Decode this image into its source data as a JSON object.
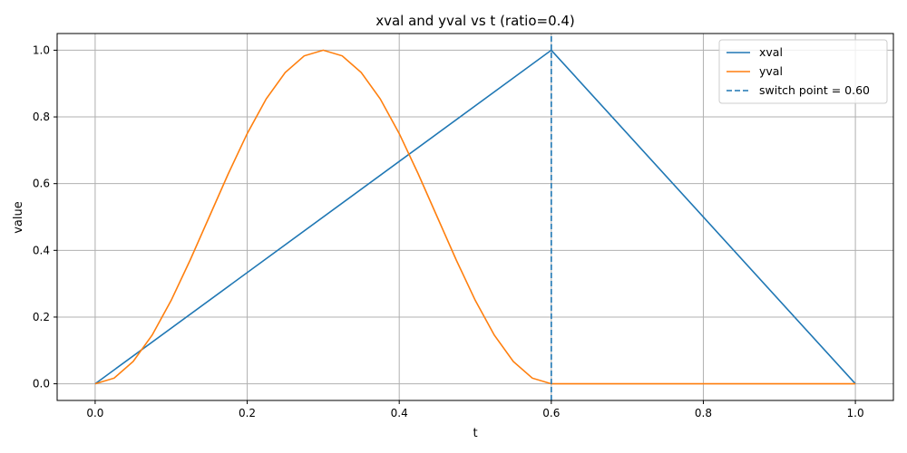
{
  "chart_data": {
    "type": "line",
    "title": "xval and yval vs t  (ratio=0.4)",
    "xlabel": "t",
    "ylabel": "value",
    "xlim": [
      -0.05,
      1.05
    ],
    "ylim": [
      -0.05,
      1.05
    ],
    "xticks": [
      "0.0",
      "0.2",
      "0.4",
      "0.6",
      "0.8",
      "1.0"
    ],
    "yticks": [
      "0.0",
      "0.2",
      "0.4",
      "0.6",
      "0.8",
      "1.0"
    ],
    "grid": true,
    "legend_position": "top-right",
    "series": [
      {
        "name": "xval",
        "color": "#1f77b4",
        "style": "solid",
        "x": [
          0.0,
          0.6,
          1.0
        ],
        "y": [
          0.0,
          1.0,
          0.0
        ]
      },
      {
        "name": "yval",
        "color": "#ff7f0e",
        "style": "solid",
        "x": [
          0.0,
          0.025,
          0.05,
          0.075,
          0.1,
          0.125,
          0.15,
          0.175,
          0.2,
          0.225,
          0.25,
          0.275,
          0.3,
          0.325,
          0.35,
          0.375,
          0.4,
          0.425,
          0.45,
          0.475,
          0.5,
          0.525,
          0.55,
          0.575,
          0.6,
          0.7,
          0.8,
          0.9,
          1.0
        ],
        "y": [
          0.0,
          0.017,
          0.067,
          0.146,
          0.25,
          0.371,
          0.5,
          0.629,
          0.75,
          0.854,
          0.933,
          0.983,
          1.0,
          0.983,
          0.933,
          0.854,
          0.75,
          0.629,
          0.5,
          0.371,
          0.25,
          0.146,
          0.067,
          0.017,
          0.0,
          0.0,
          0.0,
          0.0,
          0.0
        ]
      },
      {
        "name": "switch point = 0.60",
        "color": "#1f77b4",
        "style": "dashed",
        "x": [
          0.6,
          0.6
        ],
        "y": [
          -0.05,
          1.05
        ]
      }
    ]
  }
}
